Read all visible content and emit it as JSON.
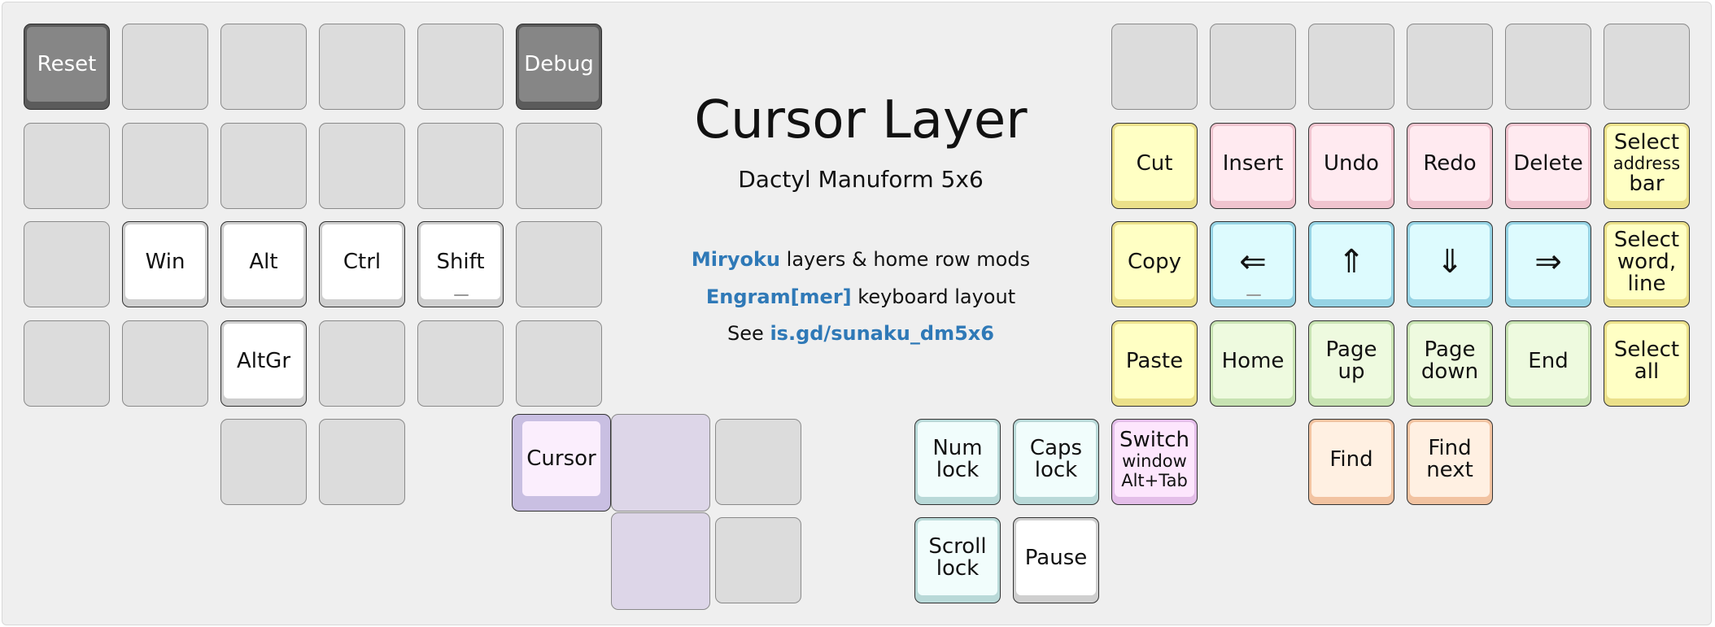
{
  "header": {
    "title": "Cursor Layer",
    "subtitle": "Dactyl Manuform 5x6",
    "line1": {
      "accent": "Miryoku",
      "text": " layers & home row mods"
    },
    "line2": {
      "accent": "Engram[mer]",
      "text": " keyboard layout"
    },
    "line3": {
      "prefix": "See ",
      "accent": "is.gd/sunaku_dm5x6"
    }
  },
  "colors": {
    "accent": "#2f79b7",
    "unassigned": "#dcdcdc",
    "system": "#868686",
    "modifier": "#ffffff",
    "clipboard": "#ffffc4",
    "editing": "#ffeaf0",
    "arrows": "#ddfbfe",
    "navigation": "#eefadf",
    "locks": "#f1fdfc",
    "search": "#fff0e2",
    "window": "#fde6fd",
    "layer": "#fbeefd"
  },
  "left_hand": {
    "row0": [
      "Reset",
      "",
      "",
      "",
      "",
      "Debug"
    ],
    "row1": [
      "",
      "",
      "",
      "",
      "",
      ""
    ],
    "row2": [
      "",
      "Win",
      "Alt",
      "Ctrl",
      "Shift",
      ""
    ],
    "row3": [
      "",
      "",
      "AltGr",
      "",
      "",
      ""
    ],
    "thumbs": [
      "",
      "",
      "Cursor",
      "",
      "",
      "",
      ""
    ]
  },
  "right_hand": {
    "row0": [
      "",
      "",
      "",
      "",
      "",
      ""
    ],
    "row1": [
      [
        "Cut"
      ],
      [
        "Insert"
      ],
      [
        "Undo"
      ],
      [
        "Redo"
      ],
      [
        "Delete"
      ],
      [
        "Select",
        "address",
        "bar"
      ]
    ],
    "row2": [
      [
        "Copy"
      ],
      [
        "⇐"
      ],
      [
        "⇑"
      ],
      [
        "⇓"
      ],
      [
        "⇒"
      ],
      [
        "Select",
        "word,",
        "line"
      ]
    ],
    "row3": [
      [
        "Paste"
      ],
      [
        "Home"
      ],
      [
        "Page",
        "up"
      ],
      [
        "Page",
        "down"
      ],
      [
        "End"
      ],
      [
        "Select",
        "all"
      ]
    ],
    "row4": [
      [
        "Num",
        "lock"
      ],
      [
        "Caps",
        "lock"
      ],
      [
        "Switch",
        "window",
        "Alt+Tab"
      ],
      [
        "Find"
      ],
      [
        "Find",
        "next"
      ]
    ],
    "thumbs": [
      [
        "Scroll",
        "lock"
      ],
      [
        "Pause"
      ]
    ]
  }
}
